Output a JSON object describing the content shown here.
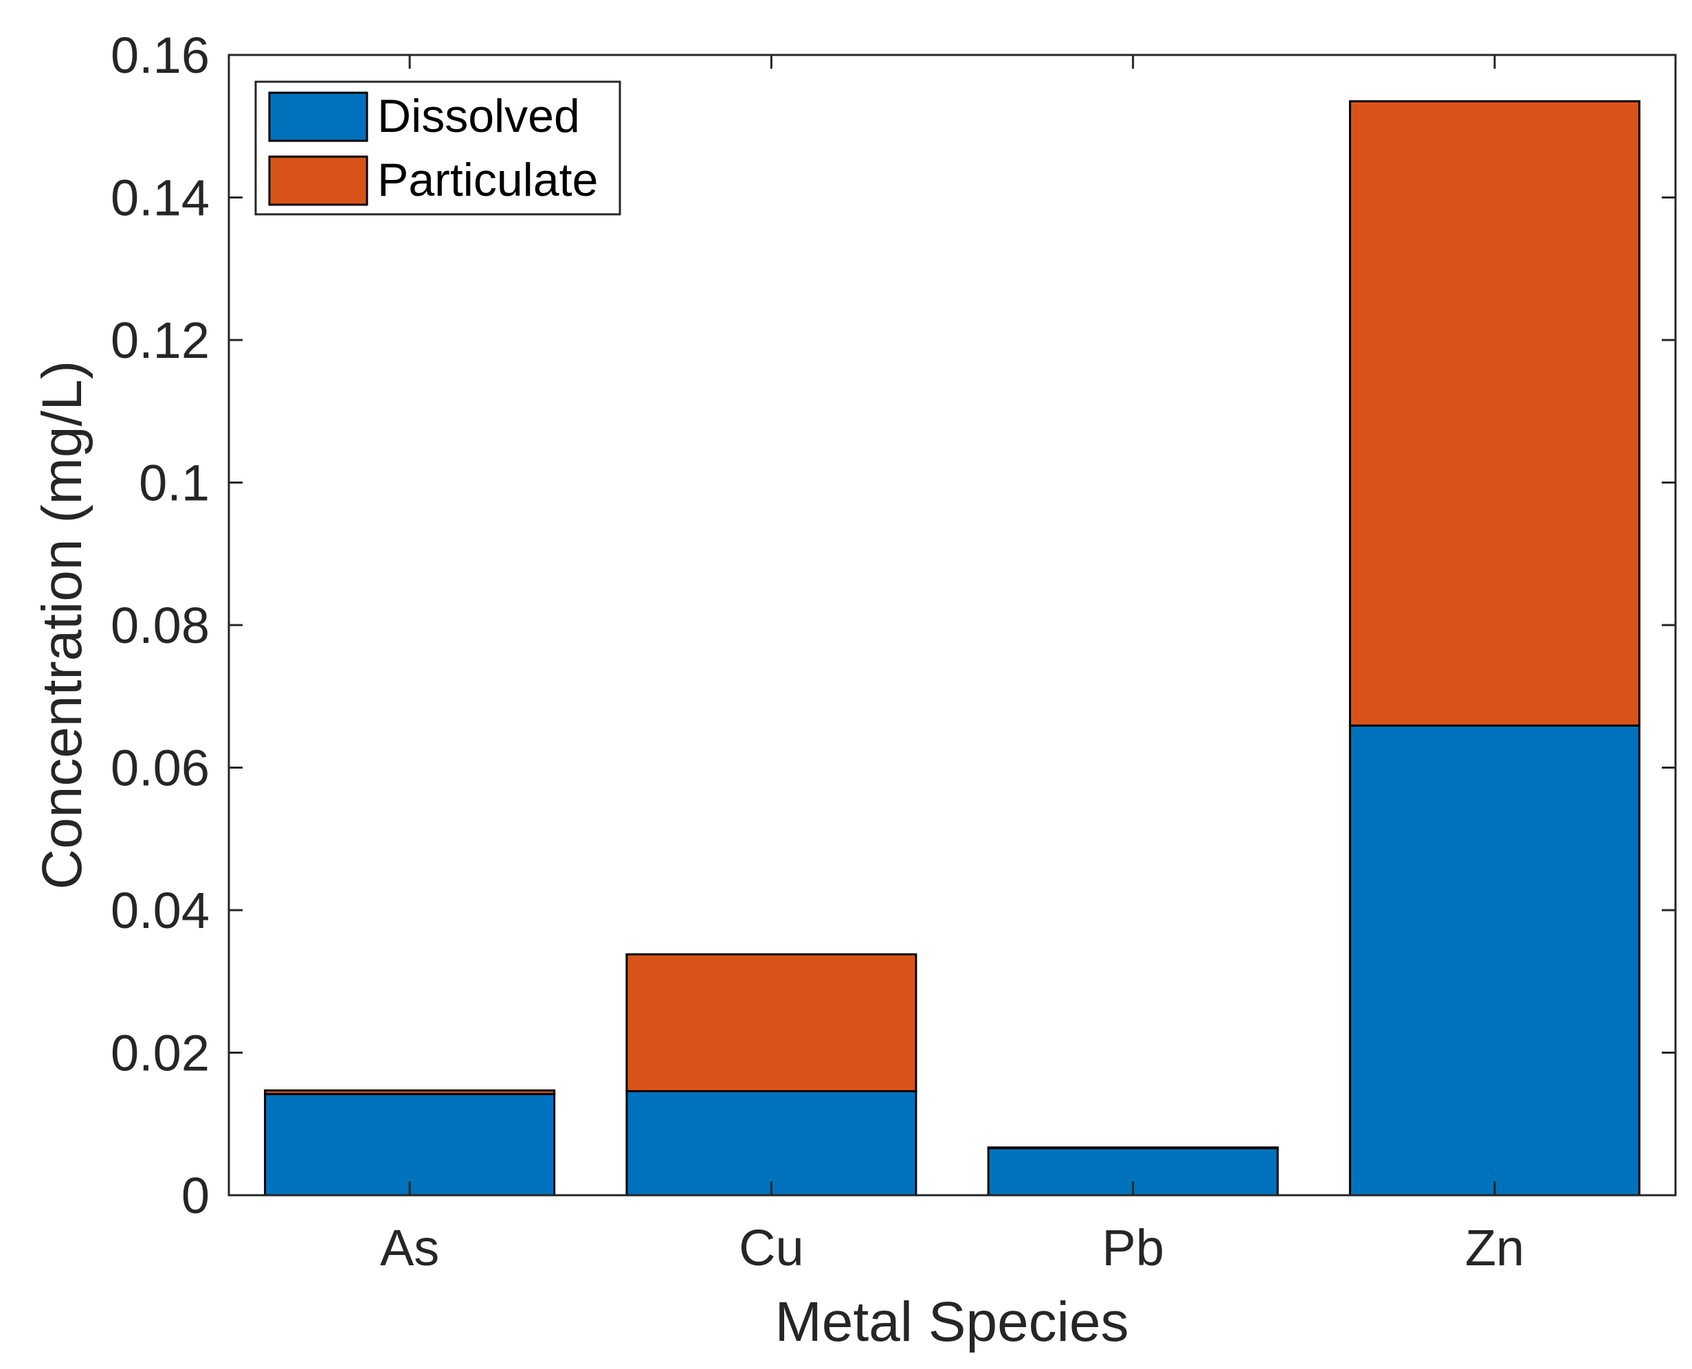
{
  "chart_data": {
    "type": "bar",
    "stacked": true,
    "title": "",
    "xlabel": "Metal Species",
    "ylabel": "Concentration (mg/L)",
    "ylim": [
      0,
      0.16
    ],
    "yticks": [
      0,
      0.02,
      0.04,
      0.06,
      0.08,
      0.1,
      0.12,
      0.14,
      0.16
    ],
    "ytick_labels": [
      "0",
      "0.02",
      "0.04",
      "0.06",
      "0.08",
      "0.1",
      "0.12",
      "0.14",
      "0.16"
    ],
    "categories": [
      "As",
      "Cu",
      "Pb",
      "Zn"
    ],
    "series": [
      {
        "name": "Dissolved",
        "color": "#0072BD",
        "values": [
          0.0142,
          0.0146,
          0.0066,
          0.0659
        ]
      },
      {
        "name": "Particulate",
        "color": "#D95319",
        "values": [
          0.0005,
          0.0192,
          0.0001,
          0.0876
        ]
      }
    ],
    "legend_position": "top-left",
    "grid": false
  }
}
